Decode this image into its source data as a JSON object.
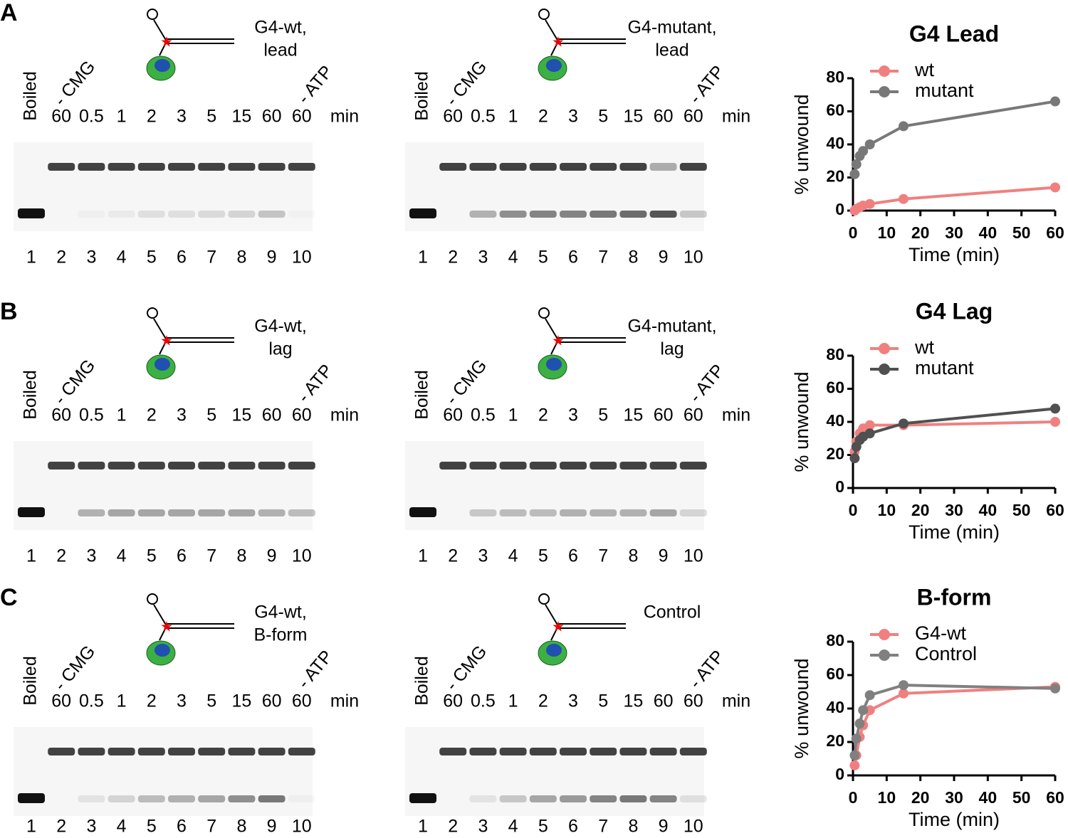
{
  "panels": [
    {
      "label": "A",
      "gels": [
        {
          "construct": [
            "G4-wt,",
            "lead"
          ],
          "headers": [
            "Boiled",
            "- CMG",
            "- ATP"
          ],
          "times": [
            "60",
            "0.5",
            "1",
            "2",
            "3",
            "5",
            "15",
            "60",
            "60"
          ],
          "unit": "min",
          "lanes": [
            1,
            2,
            3,
            4,
            5,
            6,
            7,
            8,
            9,
            10
          ]
        },
        {
          "construct": [
            "G4-mutant,",
            "lead"
          ],
          "headers": [
            "Boiled",
            "- CMG",
            "- ATP"
          ],
          "times": [
            "60",
            "0.5",
            "1",
            "2",
            "3",
            "5",
            "15",
            "60",
            "60"
          ],
          "unit": "min",
          "lanes": [
            1,
            2,
            3,
            4,
            5,
            6,
            7,
            8,
            9,
            10
          ]
        }
      ]
    },
    {
      "label": "B",
      "gels": [
        {
          "construct": [
            "G4-wt,",
            "lag"
          ],
          "headers": [
            "Boiled",
            "- CMG",
            "- ATP"
          ],
          "times": [
            "60",
            "0.5",
            "1",
            "2",
            "3",
            "5",
            "15",
            "60",
            "60"
          ],
          "unit": "min",
          "lanes": [
            1,
            2,
            3,
            4,
            5,
            6,
            7,
            8,
            9,
            10
          ]
        },
        {
          "construct": [
            "G4-mutant,",
            "lag"
          ],
          "headers": [
            "Boiled",
            "- CMG",
            "- ATP"
          ],
          "times": [
            "60",
            "0.5",
            "1",
            "2",
            "3",
            "5",
            "15",
            "60",
            "60"
          ],
          "unit": "min",
          "lanes": [
            1,
            2,
            3,
            4,
            5,
            6,
            7,
            8,
            9,
            10
          ]
        }
      ]
    },
    {
      "label": "C",
      "gels": [
        {
          "construct": [
            "G4-wt,",
            "B-form"
          ],
          "headers": [
            "Boiled",
            "- CMG",
            "- ATP"
          ],
          "times": [
            "60",
            "0.5",
            "1",
            "2",
            "3",
            "5",
            "15",
            "60",
            "60"
          ],
          "unit": "min",
          "lanes": [
            1,
            2,
            3,
            4,
            5,
            6,
            7,
            8,
            9,
            10
          ]
        },
        {
          "construct": [
            "Control"
          ],
          "headers": [
            "Boiled",
            "- CMG",
            "- ATP"
          ],
          "times": [
            "60",
            "0.5",
            "1",
            "2",
            "3",
            "5",
            "15",
            "60",
            "60"
          ],
          "unit": "min",
          "lanes": [
            1,
            2,
            3,
            4,
            5,
            6,
            7,
            8,
            9,
            10
          ]
        }
      ]
    }
  ],
  "chart_data": [
    {
      "type": "line",
      "title": "G4 Lead",
      "x_label": "Time (min)",
      "y_label": "% unwound",
      "x": [
        0.5,
        1,
        2,
        3,
        5,
        15,
        60
      ],
      "series": [
        {
          "name": "wt",
          "color": "#f08080",
          "values": [
            0,
            1,
            2,
            3,
            4,
            7,
            14
          ]
        },
        {
          "name": "mutant",
          "color": "#787878",
          "values": [
            22,
            28,
            33,
            36,
            40,
            51,
            66
          ]
        }
      ],
      "xlim": [
        0,
        60
      ],
      "xticks": [
        0,
        10,
        20,
        30,
        40,
        50,
        60
      ],
      "ylim": [
        0,
        80
      ],
      "yticks": [
        0,
        20,
        40,
        60,
        80
      ]
    },
    {
      "type": "line",
      "title": "G4 Lag",
      "x_label": "Time (min)",
      "y_label": "% unwound",
      "x": [
        0.5,
        1,
        2,
        3,
        5,
        15,
        60
      ],
      "series": [
        {
          "name": "wt",
          "color": "#f08080",
          "values": [
            22,
            28,
            33,
            36,
            38,
            38,
            40
          ]
        },
        {
          "name": "mutant",
          "color": "#505050",
          "values": [
            18,
            25,
            29,
            31,
            33,
            39,
            48
          ]
        }
      ],
      "xlim": [
        0,
        60
      ],
      "xticks": [
        0,
        10,
        20,
        30,
        40,
        50,
        60
      ],
      "ylim": [
        0,
        80
      ],
      "yticks": [
        0,
        20,
        40,
        60,
        80
      ]
    },
    {
      "type": "line",
      "title": "B-form",
      "x_label": "Time (min)",
      "y_label": "% unwound",
      "x": [
        0.5,
        1,
        2,
        3,
        5,
        15,
        60
      ],
      "series": [
        {
          "name": "G4-wt",
          "color": "#f08080",
          "values": [
            6,
            12,
            23,
            30,
            39,
            49,
            53
          ]
        },
        {
          "name": "Control",
          "color": "#808080",
          "values": [
            12,
            22,
            31,
            39,
            48,
            54,
            52
          ]
        }
      ],
      "xlim": [
        0,
        60
      ],
      "xticks": [
        0,
        10,
        20,
        30,
        40,
        50,
        60
      ],
      "ylim": [
        0,
        80
      ],
      "yticks": [
        0,
        20,
        40,
        60,
        80
      ]
    }
  ]
}
